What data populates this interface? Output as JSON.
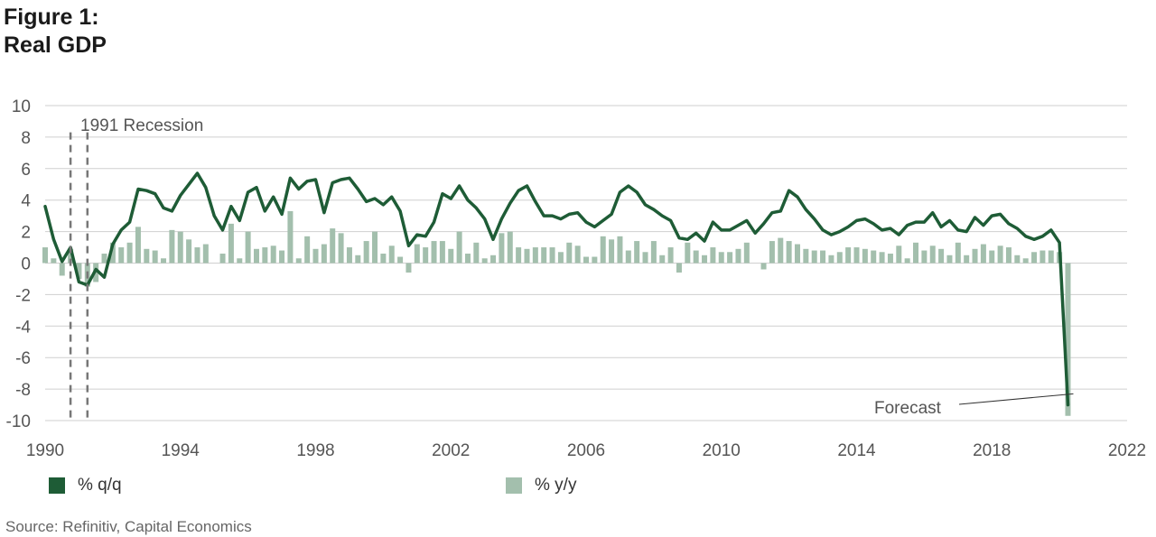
{
  "title": {
    "line1": "Figure 1:",
    "line2": "Real GDP"
  },
  "legend": [
    {
      "label": "% q/q",
      "color": "#1e5c36"
    },
    {
      "label": "% y/y",
      "color": "#a3bfad"
    }
  ],
  "source": "Source:  Refinitiv, Capital Economics",
  "chart_data": {
    "type": "line",
    "xlim": [
      1990,
      2022
    ],
    "ylim": [
      -10,
      10
    ],
    "x_ticks": [
      "1990",
      "1994",
      "1998",
      "2002",
      "2006",
      "2010",
      "2014",
      "2018",
      "2022"
    ],
    "y_ticks": [
      "10",
      "8",
      "6",
      "4",
      "2",
      "0",
      "-2",
      "-4",
      "-6",
      "-8",
      "-10"
    ],
    "grid": true,
    "series": [
      {
        "name": "% q/q",
        "type": "line",
        "color": "#1e5c36",
        "x": [
          1990.0,
          1990.25,
          1990.5,
          1990.75,
          1991.0,
          1991.25,
          1991.5,
          1991.75,
          1992.0,
          1992.25,
          1992.5,
          1992.75,
          1993.0,
          1993.25,
          1993.5,
          1993.75,
          1994.0,
          1994.25,
          1994.5,
          1994.75,
          1995.0,
          1995.25,
          1995.5,
          1995.75,
          1996.0,
          1996.25,
          1996.5,
          1996.75,
          1997.0,
          1997.25,
          1997.5,
          1997.75,
          1998.0,
          1998.25,
          1998.5,
          1998.75,
          1999.0,
          1999.25,
          1999.5,
          1999.75,
          2000.0,
          2000.25,
          2000.5,
          2000.75,
          2001.0,
          2001.25,
          2001.5,
          2001.75,
          2002.0,
          2002.25,
          2002.5,
          2002.75,
          2003.0,
          2003.25,
          2003.5,
          2003.75,
          2004.0,
          2004.25,
          2004.5,
          2004.75,
          2005.0,
          2005.25,
          2005.5,
          2005.75,
          2006.0,
          2006.25,
          2006.5,
          2006.75,
          2007.0,
          2007.25,
          2007.5,
          2007.75,
          2008.0,
          2008.25,
          2008.5,
          2008.75,
          2009.0,
          2009.25,
          2009.5,
          2009.75,
          2010.0,
          2010.25,
          2010.5,
          2010.75,
          2011.0,
          2011.25,
          2011.5,
          2011.75,
          2012.0,
          2012.25,
          2012.5,
          2012.75,
          2013.0,
          2013.25,
          2013.5,
          2013.75,
          2014.0,
          2014.25,
          2014.5,
          2014.75,
          2015.0,
          2015.25,
          2015.5,
          2015.75,
          2016.0,
          2016.25,
          2016.5,
          2016.75,
          2017.0,
          2017.25,
          2017.5,
          2017.75,
          2018.0,
          2018.25,
          2018.5,
          2018.75,
          2019.0,
          2019.25,
          2019.5,
          2019.75,
          2020.0,
          2020.25
        ],
        "values": [
          3.6,
          1.5,
          0.1,
          1.0,
          -1.2,
          -1.4,
          -0.4,
          -0.9,
          1.2,
          2.1,
          2.6,
          4.7,
          4.6,
          4.4,
          3.5,
          3.3,
          4.3,
          5.0,
          5.7,
          4.8,
          3.0,
          2.1,
          3.6,
          2.7,
          4.5,
          4.8,
          3.3,
          4.2,
          3.1,
          5.4,
          4.7,
          5.2,
          5.3,
          3.2,
          5.1,
          5.3,
          5.4,
          4.7,
          3.9,
          4.1,
          3.7,
          4.2,
          3.3,
          1.1,
          1.8,
          1.7,
          2.6,
          4.4,
          4.1,
          4.9,
          4.0,
          3.5,
          2.8,
          1.5,
          2.8,
          3.8,
          4.6,
          4.9,
          3.9,
          3.0,
          3.0,
          2.8,
          3.1,
          3.2,
          2.6,
          2.3,
          2.7,
          3.1,
          4.5,
          4.9,
          4.5,
          3.7,
          3.4,
          3.0,
          2.7,
          1.6,
          1.5,
          1.9,
          1.4,
          2.6,
          2.1,
          2.1,
          2.4,
          2.7,
          1.9,
          2.5,
          3.2,
          3.3,
          4.6,
          4.2,
          3.4,
          2.8,
          2.1,
          1.8,
          2.0,
          2.3,
          2.7,
          2.8,
          2.5,
          2.1,
          2.2,
          1.8,
          2.4,
          2.6,
          2.6,
          3.2,
          2.3,
          2.7,
          2.1,
          2.0,
          2.9,
          2.4,
          3.0,
          3.1,
          2.5,
          2.2,
          1.7,
          1.5,
          1.7,
          2.1,
          1.3,
          -9.0
        ]
      },
      {
        "name": "% y/y",
        "type": "bar",
        "color": "#a3bfad",
        "x": [
          1990.0,
          1990.25,
          1990.5,
          1990.75,
          1991.0,
          1991.25,
          1991.5,
          1991.75,
          1992.0,
          1992.25,
          1992.5,
          1992.75,
          1993.0,
          1993.25,
          1993.5,
          1993.75,
          1994.0,
          1994.25,
          1994.5,
          1994.75,
          1995.0,
          1995.25,
          1995.5,
          1995.75,
          1996.0,
          1996.25,
          1996.5,
          1996.75,
          1997.0,
          1997.25,
          1997.5,
          1997.75,
          1998.0,
          1998.25,
          1998.5,
          1998.75,
          1999.0,
          1999.25,
          1999.5,
          1999.75,
          2000.0,
          2000.25,
          2000.5,
          2000.75,
          2001.0,
          2001.25,
          2001.5,
          2001.75,
          2002.0,
          2002.25,
          2002.5,
          2002.75,
          2003.0,
          2003.25,
          2003.5,
          2003.75,
          2004.0,
          2004.25,
          2004.5,
          2004.75,
          2005.0,
          2005.25,
          2005.5,
          2005.75,
          2006.0,
          2006.25,
          2006.5,
          2006.75,
          2007.0,
          2007.25,
          2007.5,
          2007.75,
          2008.0,
          2008.25,
          2008.5,
          2008.75,
          2009.0,
          2009.25,
          2009.5,
          2009.75,
          2010.0,
          2010.25,
          2010.5,
          2010.75,
          2011.0,
          2011.25,
          2011.5,
          2011.75,
          2012.0,
          2012.25,
          2012.5,
          2012.75,
          2013.0,
          2013.25,
          2013.5,
          2013.75,
          2014.0,
          2014.25,
          2014.5,
          2014.75,
          2015.0,
          2015.25,
          2015.5,
          2015.75,
          2016.0,
          2016.25,
          2016.5,
          2016.75,
          2017.0,
          2017.25,
          2017.5,
          2017.75,
          2018.0,
          2018.25,
          2018.5,
          2018.75,
          2019.0,
          2019.25,
          2019.5,
          2019.75,
          2020.0,
          2020.25
        ],
        "values": [
          1.0,
          0.3,
          -0.8,
          0.9,
          -1.0,
          -1.5,
          -1.2,
          0.6,
          1.3,
          1.0,
          1.3,
          2.3,
          0.9,
          0.8,
          0.3,
          2.1,
          2.0,
          1.5,
          1.0,
          1.2,
          0.0,
          0.6,
          2.5,
          0.3,
          2.0,
          0.9,
          1.0,
          1.1,
          0.8,
          3.3,
          0.3,
          1.7,
          0.9,
          1.2,
          2.2,
          1.9,
          1.0,
          0.5,
          1.4,
          2.0,
          0.6,
          1.1,
          0.4,
          -0.6,
          1.2,
          1.0,
          1.4,
          1.4,
          0.9,
          2.0,
          0.6,
          1.3,
          0.3,
          0.5,
          1.9,
          2.0,
          1.0,
          0.9,
          1.0,
          1.0,
          1.0,
          0.7,
          1.3,
          1.1,
          0.4,
          0.4,
          1.7,
          1.5,
          1.7,
          0.8,
          1.4,
          0.7,
          1.4,
          0.5,
          1.0,
          -0.6,
          1.3,
          0.8,
          0.5,
          1.0,
          0.7,
          0.7,
          0.9,
          1.3,
          0.0,
          -0.4,
          1.4,
          1.6,
          1.4,
          1.2,
          0.9,
          0.8,
          0.8,
          0.5,
          0.7,
          1.0,
          1.0,
          0.9,
          0.8,
          0.7,
          0.6,
          1.1,
          0.3,
          1.3,
          0.8,
          1.1,
          0.9,
          0.5,
          1.3,
          0.5,
          0.9,
          1.2,
          0.8,
          1.1,
          1.0,
          0.5,
          0.3,
          0.7,
          0.8,
          0.8,
          0.7,
          -9.7
        ]
      }
    ],
    "annotations": [
      {
        "text": "1991 Recession",
        "x_start": 1990.75,
        "x_end": 1991.25
      },
      {
        "text": "Forecast",
        "x": 2020.25,
        "y": -8.3
      }
    ]
  }
}
